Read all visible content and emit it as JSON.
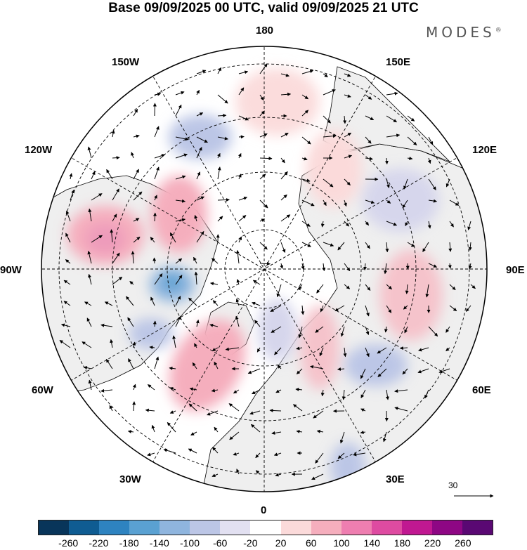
{
  "title": "Base 09/09/2025 00 UTC, valid 09/09/2025 21 UTC",
  "brand": {
    "name": "MODES",
    "mark": "®"
  },
  "longitude_labels": {
    "top": "180",
    "bottom": "0",
    "left": "90W",
    "right": "90E",
    "upper_left_1": "150W",
    "upper_left_2": "120W",
    "upper_right_1": "150E",
    "upper_right_2": "120E",
    "lower_left_1": "60W",
    "lower_left_2": "30W",
    "lower_right_1": "60E",
    "lower_right_2": "30E"
  },
  "reference_vector": {
    "value": "30"
  },
  "colorbar": {
    "colors": [
      "#08355a",
      "#0f5c92",
      "#2e83c0",
      "#5aa1d2",
      "#8fb5de",
      "#bcc6e6",
      "#e2e0f1",
      "#ffffff",
      "#fbdada",
      "#f5aebd",
      "#ee7eb0",
      "#de4ba1",
      "#c01891",
      "#8e0784",
      "#5a0873"
    ],
    "tick_labels": [
      "-260",
      "-220",
      "-180",
      "-140",
      "-100",
      "-60",
      "-20",
      "20",
      "60",
      "100",
      "140",
      "180",
      "220",
      "260"
    ]
  },
  "colors": {
    "land": "#efefef",
    "ocean": "#ffffff",
    "coast": "#000000"
  }
}
